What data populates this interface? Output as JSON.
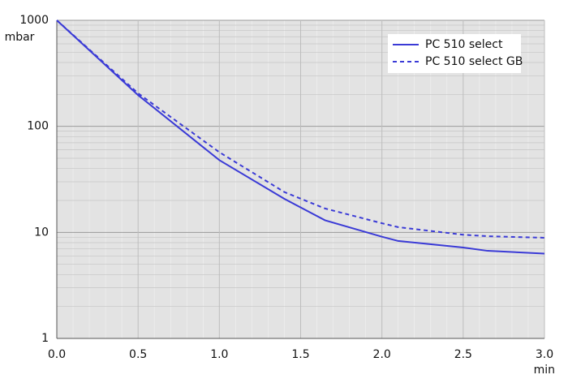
{
  "chart_data": {
    "type": "line",
    "ylabel": "mbar",
    "xlabel": "min",
    "x": [
      0,
      0.5,
      1.0,
      1.4,
      1.65,
      2.0,
      2.1,
      2.5,
      2.65,
      3.0
    ],
    "series": [
      {
        "name": "PC 510 select",
        "color": "#3a3ad6",
        "dash": false,
        "values": [
          1000,
          197,
          48,
          20.7,
          13,
          9.1,
          8.3,
          7.2,
          6.7,
          6.3
        ]
      },
      {
        "name": "PC 510 select GB",
        "color": "#3a3ad6",
        "dash": true,
        "values": [
          1000,
          205,
          57,
          24,
          16.8,
          12.2,
          11.2,
          9.5,
          9.2,
          8.9
        ]
      }
    ],
    "xlim": [
      0,
      3.0
    ],
    "ylim": [
      1,
      1000
    ],
    "log_y": true,
    "xticks": [
      {
        "value": 0,
        "label": "0.0"
      },
      0.5,
      {
        "value": 1,
        "label": "1.0"
      },
      1.5,
      {
        "value": 2,
        "label": "2.0"
      },
      2.5,
      {
        "value": 3,
        "label": "3.0"
      }
    ],
    "yticks": [
      1,
      10,
      100,
      1000
    ],
    "grid": true,
    "legend": "upper right"
  }
}
